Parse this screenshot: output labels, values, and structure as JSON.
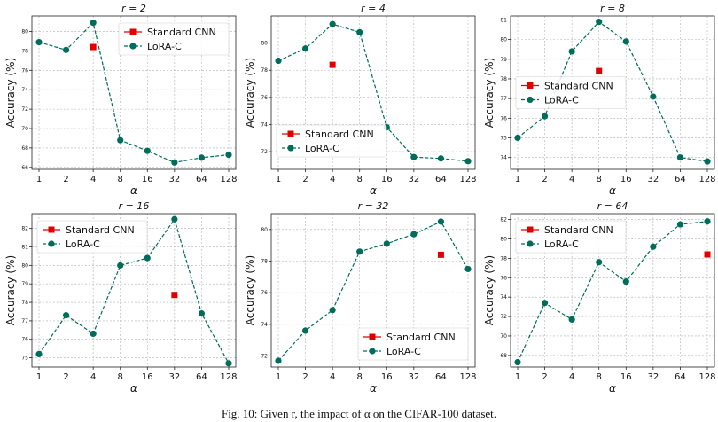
{
  "caption": "Fig. 10: Given r, the impact of α on the CIFAR-100 dataset.",
  "colors": {
    "lora": "#006d5b",
    "baseline": "#e00000",
    "grid": "#b0b0b0"
  },
  "chart_data": [
    {
      "type": "line",
      "title": "r = 2",
      "xlabel": "α",
      "ylabel": "Accuracy (%)",
      "categories": [
        "1",
        "2",
        "4",
        "8",
        "16",
        "32",
        "64",
        "128"
      ],
      "yticks": [
        66,
        68,
        70,
        72,
        74,
        76,
        78,
        80
      ],
      "ylim": [
        65.8,
        81.6
      ],
      "grid": true,
      "legend_position": "top-right",
      "series": [
        {
          "name": "Standard CNN",
          "marker": "square",
          "points": [
            {
              "x": "4",
              "y": 78.4
            }
          ]
        },
        {
          "name": "LoRA-C",
          "marker": "circle",
          "values": [
            78.9,
            78.1,
            80.9,
            68.8,
            67.7,
            66.5,
            67.0,
            67.3
          ]
        }
      ]
    },
    {
      "type": "line",
      "title": "r = 4",
      "xlabel": "α",
      "ylabel": "Accuracy (%)",
      "categories": [
        "1",
        "2",
        "4",
        "8",
        "16",
        "32",
        "64",
        "128"
      ],
      "yticks": [
        72,
        74,
        76,
        78,
        80
      ],
      "ylim": [
        70.7,
        82.0
      ],
      "grid": true,
      "legend_position": "lower-left",
      "series": [
        {
          "name": "Standard CNN",
          "marker": "square",
          "points": [
            {
              "x": "4",
              "y": 78.4
            }
          ]
        },
        {
          "name": "LoRA-C",
          "marker": "circle",
          "values": [
            78.7,
            79.6,
            81.4,
            80.8,
            73.8,
            71.6,
            71.5,
            71.3
          ]
        }
      ]
    },
    {
      "type": "line",
      "title": "r = 8",
      "xlabel": "α",
      "ylabel": "Accuracy (%)",
      "categories": [
        "1",
        "2",
        "4",
        "8",
        "16",
        "32",
        "64",
        "128"
      ],
      "yticks": [
        74,
        75,
        76,
        77,
        78,
        79,
        80,
        81
      ],
      "ylim": [
        73.4,
        81.2
      ],
      "grid": true,
      "legend_position": "center-left",
      "series": [
        {
          "name": "Standard CNN",
          "marker": "square",
          "points": [
            {
              "x": "8",
              "y": 78.4
            }
          ]
        },
        {
          "name": "LoRA-C",
          "marker": "circle",
          "values": [
            75.0,
            76.1,
            79.4,
            80.9,
            79.9,
            77.1,
            74.0,
            73.8
          ]
        }
      ]
    },
    {
      "type": "line",
      "title": "r = 16",
      "xlabel": "α",
      "ylabel": "Accuracy (%)",
      "categories": [
        "1",
        "2",
        "4",
        "8",
        "16",
        "32",
        "64",
        "128"
      ],
      "yticks": [
        75,
        76,
        77,
        78,
        79,
        80,
        81,
        82
      ],
      "ylim": [
        74.5,
        82.8
      ],
      "grid": true,
      "legend_position": "top-left",
      "series": [
        {
          "name": "Standard CNN",
          "marker": "square",
          "points": [
            {
              "x": "32",
              "y": 78.4
            }
          ]
        },
        {
          "name": "LoRA-C",
          "marker": "circle",
          "values": [
            75.2,
            77.3,
            76.3,
            80.0,
            80.4,
            82.5,
            77.4,
            74.7
          ]
        }
      ]
    },
    {
      "type": "line",
      "title": "r = 32",
      "xlabel": "α",
      "ylabel": "Accuracy (%)",
      "categories": [
        "1",
        "2",
        "4",
        "8",
        "16",
        "32",
        "64",
        "128"
      ],
      "yticks": [
        72,
        74,
        76,
        78,
        80
      ],
      "ylim": [
        71.3,
        81.0
      ],
      "grid": true,
      "legend_position": "lower-right",
      "series": [
        {
          "name": "Standard CNN",
          "marker": "square",
          "points": [
            {
              "x": "64",
              "y": 78.4
            }
          ]
        },
        {
          "name": "LoRA-C",
          "marker": "circle",
          "values": [
            71.7,
            73.6,
            74.9,
            78.6,
            79.1,
            79.7,
            80.5,
            77.5
          ]
        }
      ]
    },
    {
      "type": "line",
      "title": "r = 64",
      "xlabel": "α",
      "ylabel": "Accuracy (%)",
      "categories": [
        "1",
        "2",
        "4",
        "8",
        "16",
        "32",
        "64",
        "128"
      ],
      "yticks": [
        68,
        70,
        72,
        74,
        76,
        78,
        80,
        82
      ],
      "ylim": [
        66.8,
        82.6
      ],
      "grid": true,
      "legend_position": "top-left",
      "series": [
        {
          "name": "Standard CNN",
          "marker": "square",
          "points": [
            {
              "x": "128",
              "y": 78.4
            }
          ]
        },
        {
          "name": "LoRA-C",
          "marker": "circle",
          "values": [
            67.3,
            73.4,
            71.7,
            77.6,
            75.6,
            79.2,
            81.5,
            81.8
          ]
        }
      ]
    }
  ]
}
